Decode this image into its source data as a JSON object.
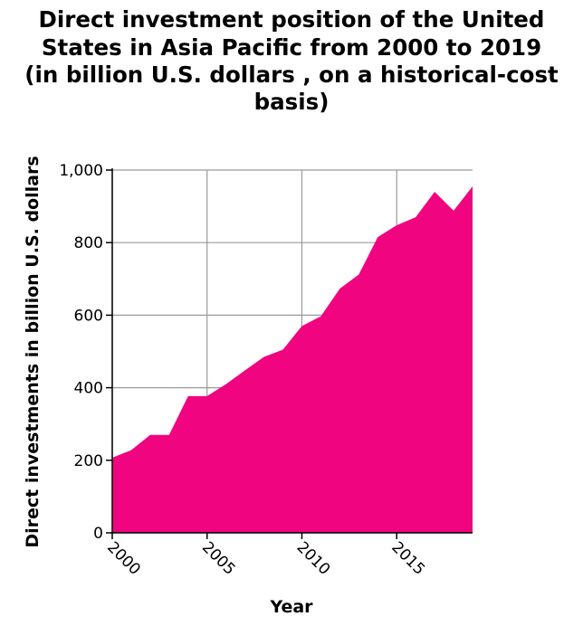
{
  "chart_data": {
    "type": "area",
    "title": "Direct investment position of the United States in Asia Pacific from 2000 to 2019 (in billion U.S. dollars , on a historical-cost basis)",
    "title_lines": [
      "Direct investment position of the United",
      "States in Asia Pacific from 2000 to 2019",
      "(in billion U.S. dollars , on a historical-cost",
      "basis)"
    ],
    "xlabel": "Year",
    "ylabel": "Direct investments in billion U.S. dollars",
    "xlim": [
      2000,
      2019
    ],
    "ylim": [
      0,
      1000
    ],
    "x_ticks": [
      2000,
      2005,
      2010,
      2015
    ],
    "x_tick_labels": [
      "2000",
      "2005",
      "2010",
      "2015"
    ],
    "y_ticks": [
      0,
      200,
      400,
      600,
      800,
      1000
    ],
    "y_tick_labels": [
      "0",
      "200",
      "400",
      "600",
      "800",
      "1,000"
    ],
    "grid": true,
    "fill_color": "#f0047f",
    "series": [
      {
        "x": [
          2000,
          2001,
          2002,
          2003,
          2004,
          2005,
          2006,
          2007,
          2008,
          2009,
          2010,
          2011,
          2012,
          2013,
          2014,
          2015,
          2016,
          2017,
          2018,
          2019
        ],
        "values": [
          207,
          228,
          270,
          270,
          377,
          377,
          410,
          448,
          485,
          505,
          570,
          597,
          673,
          712,
          815,
          848,
          870,
          940,
          888,
          955
        ]
      }
    ]
  }
}
